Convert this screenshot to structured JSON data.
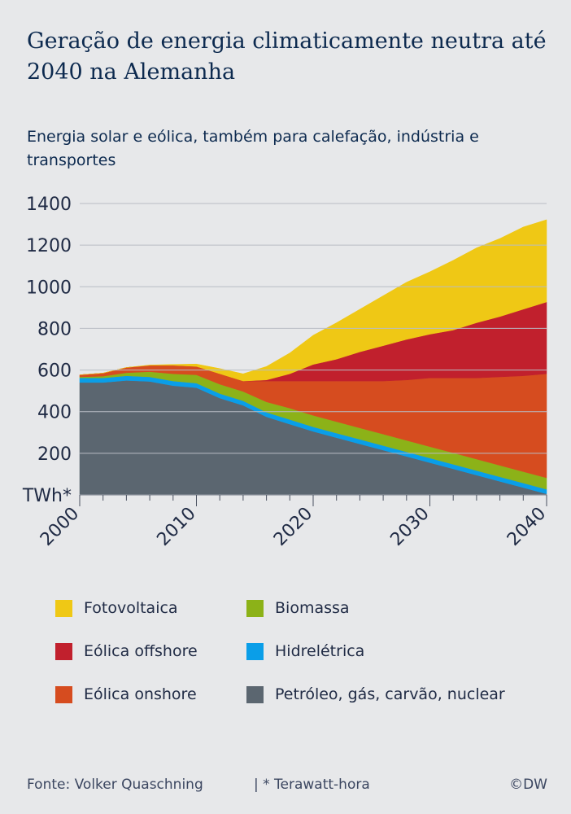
{
  "title": "Geração de energia climaticamente neutra até 2040 na Alemanha",
  "subtitle": "Energia solar e eólica, também para calefação, indústria e transportes",
  "footer": {
    "source": "Fonte: Volker Quaschning",
    "note": "| * Terawatt-hora",
    "brand": "©DW"
  },
  "colors": {
    "background": "#e7e8ea",
    "grid": "#b8bcc4",
    "axis_text": "#1f2a44"
  },
  "chart_data": {
    "type": "area",
    "stacked": true,
    "title": "Geração de energia climaticamente neutra até 2040 na Alemanha",
    "ylabel": "TWh*",
    "xlabel": "",
    "xlim": [
      2000,
      2040
    ],
    "ylim": [
      0,
      1400
    ],
    "yticks": [
      200,
      400,
      600,
      800,
      1000,
      1200,
      1400
    ],
    "xticks": [
      2000,
      2010,
      2020,
      2030,
      2040
    ],
    "grid": true,
    "legend_position": "bottom",
    "x": [
      2000,
      2002,
      2004,
      2006,
      2008,
      2010,
      2012,
      2014,
      2016,
      2018,
      2020,
      2022,
      2024,
      2026,
      2028,
      2030,
      2032,
      2034,
      2036,
      2038,
      2040
    ],
    "series": [
      {
        "name": "Petróleo, gás, carvão, nuclear",
        "color": "#5b6670",
        "values": [
          540,
          540,
          550,
          545,
          525,
          515,
          465,
          430,
          375,
          340,
          305,
          275,
          245,
          215,
          185,
          155,
          125,
          95,
          65,
          35,
          5
        ]
      },
      {
        "name": "Hidrelétrica",
        "color": "#0a9ee8",
        "values": [
          22,
          22,
          22,
          22,
          22,
          22,
          22,
          22,
          22,
          22,
          22,
          22,
          22,
          22,
          22,
          22,
          22,
          22,
          22,
          22,
          22
        ]
      },
      {
        "name": "Biomassa",
        "color": "#8cb218",
        "values": [
          5,
          8,
          15,
          25,
          35,
          40,
          45,
          45,
          50,
          55,
          55,
          55,
          55,
          55,
          55,
          55,
          55,
          55,
          55,
          55,
          55
        ]
      },
      {
        "name": "Eólica onshore",
        "color": "#d64c1f",
        "values": [
          10,
          15,
          25,
          30,
          40,
          40,
          50,
          50,
          100,
          130,
          165,
          195,
          225,
          255,
          290,
          330,
          360,
          390,
          425,
          460,
          500
        ]
      },
      {
        "name": "Eólica offshore",
        "color": "#c1202d",
        "values": [
          0,
          0,
          0,
          0,
          0,
          0,
          0,
          0,
          5,
          35,
          80,
          105,
          140,
          170,
          195,
          210,
          230,
          265,
          290,
          320,
          345
        ]
      },
      {
        "name": "Fotovoltaica",
        "color": "#efc815",
        "values": [
          0,
          0,
          0,
          2,
          5,
          12,
          25,
          35,
          65,
          100,
          140,
          175,
          205,
          240,
          275,
          300,
          335,
          360,
          375,
          395,
          395
        ]
      }
    ]
  }
}
